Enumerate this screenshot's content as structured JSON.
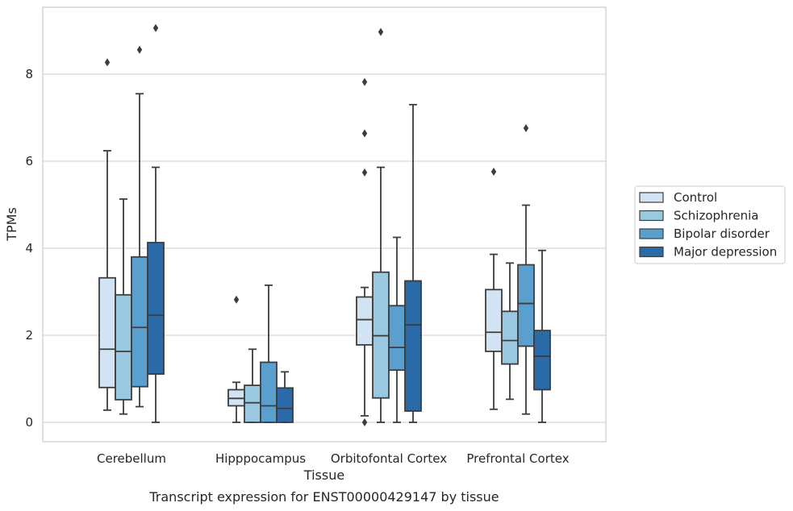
{
  "caption": "Transcript expression for ENST00000429147 by tissue",
  "chart_data": {
    "type": "box",
    "title": "",
    "xlabel": "Tissue",
    "ylabel": "TPMs",
    "ylim": [
      -0.45,
      9.75
    ],
    "yticks": [
      0,
      2,
      4,
      6,
      8
    ],
    "grid": "horizontal",
    "legend_position": "right",
    "categories": [
      "Cerebellum",
      "Hipppocampus",
      "Orbitofontal Cortex",
      "Prefrontal Cortex"
    ],
    "series": [
      {
        "name": "Control",
        "color": "#d2e3f3",
        "boxes": [
          {
            "whisker_low": 0.28,
            "q1": 0.8,
            "median": 1.68,
            "q3": 3.32,
            "whisker_high": 6.24,
            "outliers": [
              8.27
            ]
          },
          {
            "whisker_low": 0.0,
            "q1": 0.38,
            "median": 0.55,
            "q3": 0.75,
            "whisker_high": 0.92,
            "outliers": [
              2.82
            ]
          },
          {
            "whisker_low": 0.15,
            "q1": 1.78,
            "median": 2.36,
            "q3": 2.88,
            "whisker_high": 3.1,
            "outliers": [
              7.82,
              6.64,
              5.74,
              0.0
            ]
          },
          {
            "whisker_low": 0.3,
            "q1": 1.63,
            "median": 2.07,
            "q3": 3.05,
            "whisker_high": 3.86,
            "outliers": [
              5.76
            ]
          }
        ]
      },
      {
        "name": "Schizophrenia",
        "color": "#9ac8e1",
        "boxes": [
          {
            "whisker_low": 0.19,
            "q1": 0.52,
            "median": 1.63,
            "q3": 2.93,
            "whisker_high": 5.13,
            "outliers": []
          },
          {
            "whisker_low": 0.0,
            "q1": 0.0,
            "median": 0.45,
            "q3": 0.85,
            "whisker_high": 1.68,
            "outliers": []
          },
          {
            "whisker_low": 0.0,
            "q1": 0.56,
            "median": 1.99,
            "q3": 3.45,
            "whisker_high": 5.86,
            "outliers": [
              8.97
            ]
          },
          {
            "whisker_low": 0.53,
            "q1": 1.34,
            "median": 1.88,
            "q3": 2.55,
            "whisker_high": 3.66,
            "outliers": []
          }
        ]
      },
      {
        "name": "Bipolar disorder",
        "color": "#5a9fcd",
        "boxes": [
          {
            "whisker_low": 0.36,
            "q1": 0.82,
            "median": 2.18,
            "q3": 3.8,
            "whisker_high": 7.55,
            "outliers": [
              8.56
            ]
          },
          {
            "whisker_low": 0.0,
            "q1": 0.0,
            "median": 0.38,
            "q3": 1.38,
            "whisker_high": 3.15,
            "outliers": []
          },
          {
            "whisker_low": 0.0,
            "q1": 1.2,
            "median": 1.72,
            "q3": 2.68,
            "whisker_high": 4.25,
            "outliers": []
          },
          {
            "whisker_low": 0.19,
            "q1": 1.75,
            "median": 2.73,
            "q3": 3.62,
            "whisker_high": 4.99,
            "outliers": [
              6.76
            ]
          }
        ]
      },
      {
        "name": "Major depression",
        "color": "#2a6aa8",
        "boxes": [
          {
            "whisker_low": 0.0,
            "q1": 1.11,
            "median": 2.46,
            "q3": 4.13,
            "whisker_high": 5.86,
            "outliers": [
              9.06
            ]
          },
          {
            "whisker_low": 0.0,
            "q1": 0.0,
            "median": 0.32,
            "q3": 0.79,
            "whisker_high": 1.16,
            "outliers": []
          },
          {
            "whisker_low": 0.0,
            "q1": 0.26,
            "median": 2.24,
            "q3": 3.25,
            "whisker_high": 7.3,
            "outliers": []
          },
          {
            "whisker_low": 0.0,
            "q1": 0.75,
            "median": 1.52,
            "q3": 2.11,
            "whisker_high": 3.95,
            "outliers": []
          }
        ]
      }
    ]
  }
}
